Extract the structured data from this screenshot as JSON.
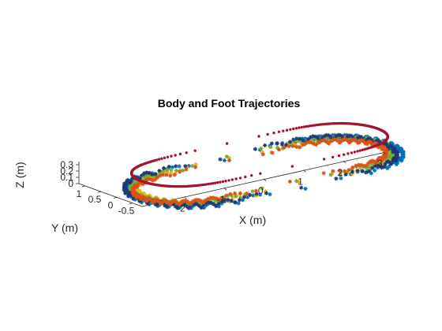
{
  "chart_data": {
    "type": "scatter",
    "projection": "3d",
    "title": "Body and Foot Trajectories",
    "xlabel": "X (m)",
    "ylabel": "Y (m)",
    "zlabel": "Z (m)",
    "xlim": [
      -3,
      3.5
    ],
    "ylim": [
      -0.8,
      1.2
    ],
    "zlim": [
      0,
      0.35
    ],
    "xticks": [
      -2,
      -1,
      0,
      1,
      2,
      3
    ],
    "xtick_labels": [
      "-2",
      "-1",
      "0",
      "1",
      "2",
      "3"
    ],
    "yticks": [
      1,
      0.5,
      0,
      -0.5
    ],
    "ytick_labels": [
      "1",
      "0.5",
      "0",
      "-0.5"
    ],
    "zticks": [
      0,
      0.1,
      0.2,
      0.3
    ],
    "ztick_labels": [
      "0",
      "0.1",
      "0.2",
      "0.3"
    ],
    "grid": false,
    "legend": null,
    "series": [
      {
        "color": "#A2142F",
        "marker": "dot",
        "description_role": "body",
        "path": "closed-loop",
        "x_range": [
          -2.8,
          3.1
        ],
        "y_range": [
          -0.5,
          0.95
        ],
        "z": 0.3
      },
      {
        "color": "#0072BD",
        "marker": "star",
        "path": "closed-loop",
        "x_range": [
          -2.9,
          3.3
        ],
        "y_range": [
          -0.75,
          1.05
        ],
        "z_range": [
          0,
          0.08
        ]
      },
      {
        "color": "#EDB120",
        "marker": "star",
        "path": "closed-loop",
        "x_range": [
          -2.7,
          3.1
        ],
        "y_range": [
          -0.6,
          0.95
        ],
        "z_range": [
          0,
          0.08
        ]
      },
      {
        "color": "#77AC30",
        "marker": "star",
        "path": "closed-loop",
        "x_range": [
          -2.8,
          3.2
        ],
        "y_range": [
          -0.55,
          1.0
        ],
        "z_range": [
          0,
          0.08
        ]
      },
      {
        "color": "#1F3A73",
        "marker": "star",
        "path": "closed-loop",
        "x_range": [
          -2.9,
          3.2
        ],
        "y_range": [
          -0.7,
          1.1
        ],
        "z_range": [
          0,
          0.08
        ]
      },
      {
        "color": "#D95319",
        "marker": "star",
        "path": "closed-loop",
        "x_range": [
          -2.8,
          3.1
        ],
        "y_range": [
          -0.45,
          0.9
        ],
        "z_range": [
          0,
          0.06
        ]
      }
    ]
  }
}
